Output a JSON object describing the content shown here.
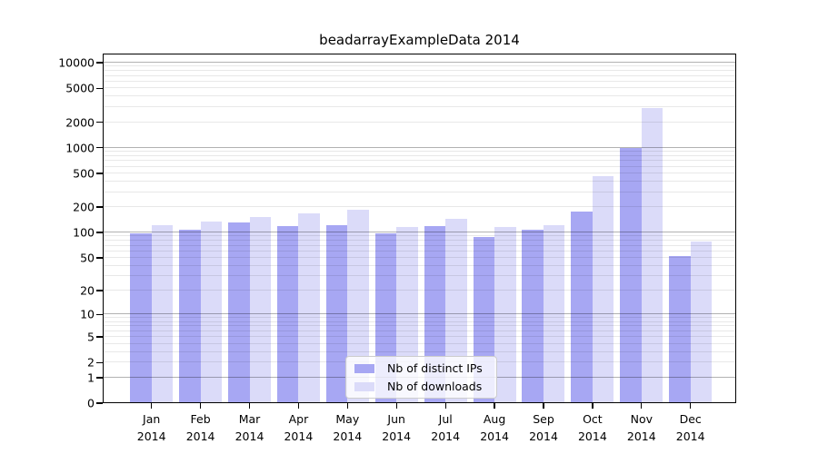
{
  "chart_data": {
    "type": "bar",
    "title": "beadarrayExampleData 2014",
    "year_label": "2014",
    "categories": [
      "Jan",
      "Feb",
      "Mar",
      "Apr",
      "May",
      "Jun",
      "Jul",
      "Aug",
      "Sep",
      "Oct",
      "Nov",
      "Dec"
    ],
    "series": [
      {
        "name": "Nb of distinct IPs",
        "color": "#a7a7f3",
        "values": [
          98,
          109,
          132,
          119,
          123,
          98,
          120,
          88,
          107,
          176,
          1000,
          53
        ]
      },
      {
        "name": "Nb of downloads",
        "color": "#dbdbf9",
        "values": [
          121,
          134,
          153,
          169,
          186,
          116,
          145,
          116,
          123,
          460,
          2900,
          79
        ]
      }
    ],
    "y_axis": {
      "scale": "log10(1+v)",
      "ticks": [
        0,
        1,
        2,
        5,
        10,
        20,
        50,
        100,
        200,
        500,
        1000,
        2000,
        5000,
        10000
      ],
      "max": 12800,
      "major_gridlines": [
        1,
        10,
        100,
        1000,
        10000
      ],
      "minor_gridline_decades": [
        1,
        10,
        100,
        1000
      ]
    },
    "grid": "horizontal, major and minor, drawn over bars",
    "legend": {
      "position": "lower center"
    }
  },
  "colors": {
    "background": "#ffffff",
    "spine": "#000000",
    "grid_major": "rgba(0,0,0,0.30)",
    "grid_minor": "rgba(0,0,0,0.09)",
    "legend_bg": "rgba(255,255,255,0.8)",
    "legend_border": "#cccccc",
    "text": "#000000"
  }
}
